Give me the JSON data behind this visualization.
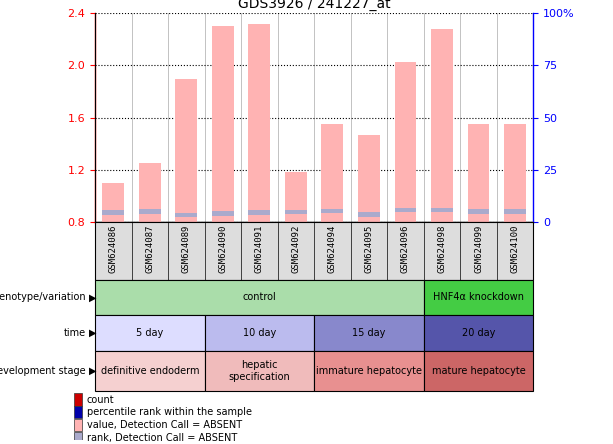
{
  "title": "GDS3926 / 241227_at",
  "samples": [
    "GSM624086",
    "GSM624087",
    "GSM624089",
    "GSM624090",
    "GSM624091",
    "GSM624092",
    "GSM624094",
    "GSM624095",
    "GSM624096",
    "GSM624098",
    "GSM624099",
    "GSM624100"
  ],
  "bar_values": [
    1.1,
    1.25,
    1.9,
    2.3,
    2.32,
    1.18,
    1.55,
    1.47,
    2.03,
    2.28,
    1.55,
    1.55
  ],
  "blue_bar_positions": [
    0.855,
    0.862,
    0.835,
    0.848,
    0.855,
    0.858,
    0.868,
    0.838,
    0.875,
    0.875,
    0.862,
    0.862
  ],
  "blue_bar_height": 0.035,
  "ylim": [
    0.8,
    2.4
  ],
  "yticks_left": [
    0.8,
    1.2,
    1.6,
    2.0,
    2.4
  ],
  "yticks_right": [
    0,
    25,
    50,
    75,
    100
  ],
  "bar_color": "#FFB3B3",
  "blue_bar_color": "#AAAACC",
  "annotation_rows": [
    {
      "label": "genotype/variation",
      "segments": [
        {
          "text": "control",
          "xstart": 0,
          "xend": 9,
          "color": "#AADDAA"
        },
        {
          "text": "HNF4α knockdown",
          "xstart": 9,
          "xend": 12,
          "color": "#44CC44"
        }
      ]
    },
    {
      "label": "time",
      "segments": [
        {
          "text": "5 day",
          "xstart": 0,
          "xend": 3,
          "color": "#DDDDFF"
        },
        {
          "text": "10 day",
          "xstart": 3,
          "xend": 6,
          "color": "#BBBBEE"
        },
        {
          "text": "15 day",
          "xstart": 6,
          "xend": 9,
          "color": "#8888CC"
        },
        {
          "text": "20 day",
          "xstart": 9,
          "xend": 12,
          "color": "#5555AA"
        }
      ]
    },
    {
      "label": "development stage",
      "segments": [
        {
          "text": "definitive endoderm",
          "xstart": 0,
          "xend": 3,
          "color": "#F5D0D0"
        },
        {
          "text": "hepatic\nspecification",
          "xstart": 3,
          "xend": 6,
          "color": "#F0BBBB"
        },
        {
          "text": "immature hepatocyte",
          "xstart": 6,
          "xend": 9,
          "color": "#E89090"
        },
        {
          "text": "mature hepatocyte",
          "xstart": 9,
          "xend": 12,
          "color": "#CC6666"
        }
      ]
    }
  ],
  "legend_items": [
    {
      "color": "#CC0000",
      "label": "count"
    },
    {
      "color": "#0000AA",
      "label": "percentile rank within the sample"
    },
    {
      "color": "#FFB3B3",
      "label": "value, Detection Call = ABSENT"
    },
    {
      "color": "#AAAACC",
      "label": "rank, Detection Call = ABSENT"
    }
  ],
  "xtick_bg_color": "#DDDDDD"
}
